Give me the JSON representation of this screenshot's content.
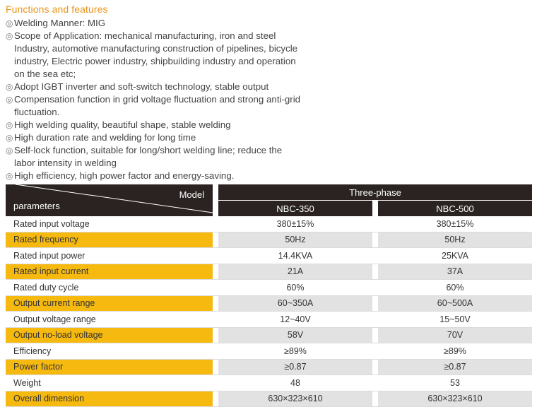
{
  "title": "Functions and features",
  "bullet_glyph": "◎",
  "features": [
    [
      "Welding Manner: MIG"
    ],
    [
      "Scope of Application: mechanical manufacturing, iron and steel",
      "Industry, automotive manufacturing construction of pipelines, bicycle",
      "industry, Electric power industry, shipbuilding industry and operation",
      "on the sea etc;"
    ],
    [
      "Adopt IGBT inverter and soft-switch technology, stable output"
    ],
    [
      "Compensation function in grid voltage fluctuation and strong anti-grid",
      "fluctuation."
    ],
    [
      "High welding quality, beautiful shape, stable welding"
    ],
    [
      "High duration rate and welding for long time"
    ],
    [
      "Self-lock function, suitable for long/short welding line; reduce the",
      "labor intensity in welding"
    ],
    [
      "High efficiency, high power factor and energy-saving."
    ]
  ],
  "table": {
    "corner_model": "Model",
    "corner_parameters": "parameters",
    "group": "Three-phase",
    "models": [
      "NBC-350",
      "NBC-500"
    ],
    "rows": [
      {
        "label": "Rated input voltage",
        "values": [
          "380±15%",
          "380±15%"
        ]
      },
      {
        "label": "Rated frequency",
        "values": [
          "50Hz",
          "50Hz"
        ]
      },
      {
        "label": "Rated input power",
        "values": [
          "14.4KVA",
          "25KVA"
        ]
      },
      {
        "label": "Rated input current",
        "values": [
          "21A",
          "37A"
        ]
      },
      {
        "label": "Rated duty cycle",
        "values": [
          "60%",
          "60%"
        ]
      },
      {
        "label": "Output current range",
        "values": [
          "60~350A",
          "60~500A"
        ]
      },
      {
        "label": "Output voltage range",
        "values": [
          "12~40V",
          "15~50V"
        ]
      },
      {
        "label": "Output no-load voltage",
        "values": [
          "58V",
          "70V"
        ]
      },
      {
        "label": "Efficiency",
        "values": [
          "≥89%",
          "≥89%"
        ]
      },
      {
        "label": "Power factor",
        "values": [
          "≥0.87",
          "≥0.87"
        ]
      },
      {
        "label": "Weight",
        "values": [
          "48",
          "53"
        ]
      },
      {
        "label": "Overall dimension",
        "values": [
          "630×323×610",
          "630×323×610"
        ]
      }
    ]
  },
  "colors": {
    "title": "#e8941a",
    "header_dark": "#2a2322",
    "highlight": "#f6b910",
    "alt_gray": "#e2e2e2"
  }
}
